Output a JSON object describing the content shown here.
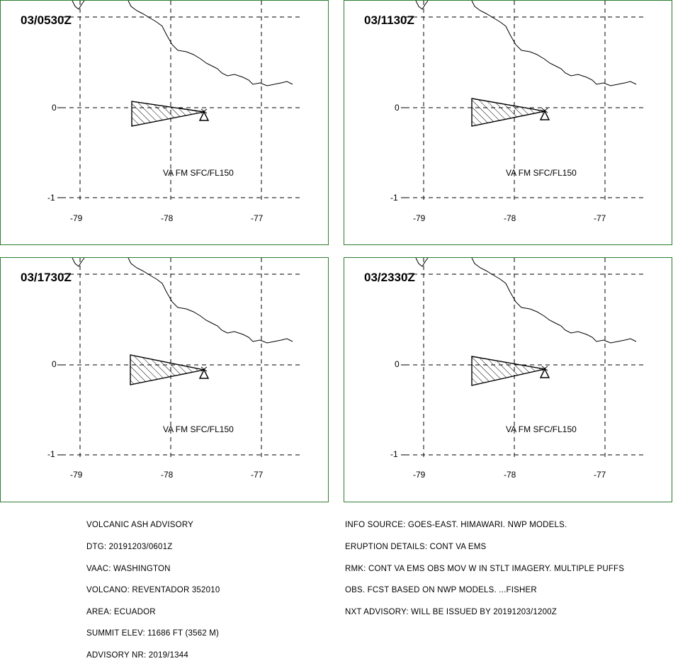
{
  "panels": [
    {
      "time": "03/0530Z",
      "va_label": "VA FM SFC/FL150"
    },
    {
      "time": "03/1130Z",
      "va_label": "VA FM SFC/FL150"
    },
    {
      "time": "03/1730Z",
      "va_label": "VA FM SFC/FL150"
    },
    {
      "time": "03/2330Z",
      "va_label": "VA FM SFC/FL150"
    }
  ],
  "axes": {
    "lat_labels": [
      "0",
      "-1"
    ],
    "lon_labels": [
      "-79",
      "-78",
      "-77"
    ]
  },
  "advisory_left": [
    "VOLCANIC ASH ADVISORY",
    "DTG: 20191203/0601Z",
    "VAAC: WASHINGTON",
    "VOLCANO: REVENTADOR 352010",
    "AREA: ECUADOR",
    "SUMMIT ELEV: 11686 FT (3562 M)",
    "ADVISORY NR: 2019/1344"
  ],
  "advisory_right": [
    "INFO SOURCE: GOES-EAST. HIMAWARI. NWP MODELS.",
    "ERUPTION DETAILS: CONT VA EMS",
    "RMK: CONT VA EMS OBS MOV W IN STLT IMAGERY. MULTIPLE PUFFS",
    "OBS. FCST BASED ON NWP MODELS. ...FISHER",
    "NXT ADVISORY: WILL BE ISSUED BY 20191203/1200Z"
  ],
  "colors": {
    "panel_border": "#2e7d32",
    "ink": "#000000"
  },
  "icons": {
    "volcano": "volcano-triangle-icon"
  }
}
